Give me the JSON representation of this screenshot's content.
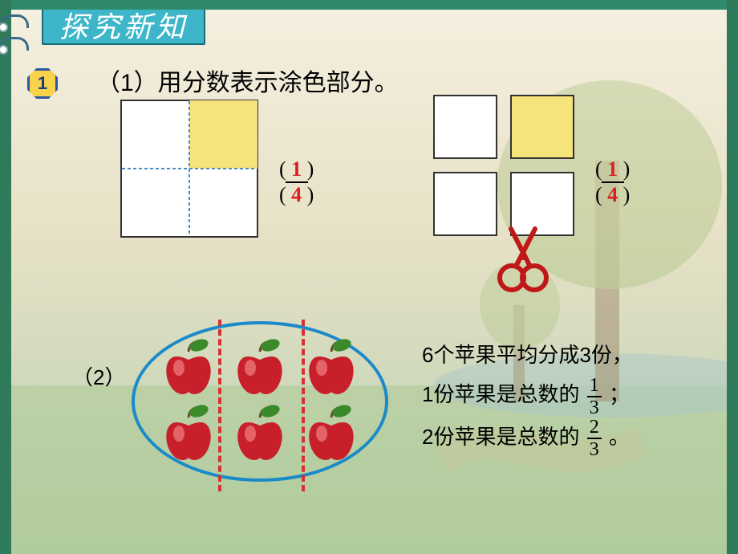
{
  "header": {
    "title": "探究新知",
    "bg_color": "#3eb6c9",
    "text_color": "#ffffff",
    "border_color": "#176b7a"
  },
  "badge": {
    "number": "1",
    "bg_color": "#f7d24a",
    "border_color": "#2a5aa0",
    "text_color": "#1a3a7a"
  },
  "frame": {
    "top_color": "#2e8a6a",
    "side_color": "#2e7a5a"
  },
  "question1": {
    "label": "（1）用分数表示涂色部分。",
    "diagA": {
      "size": 172,
      "border_color": "#333333",
      "fill_color": "#f5e47a",
      "dash_color": "#4a8ac0",
      "shaded_cell": 1
    },
    "fracA": {
      "numerator": "1",
      "denominator": "4",
      "color": "#d92020"
    },
    "diagB": {
      "cell_size": 80,
      "gap": 16,
      "border_color": "#333333",
      "fill_color": "#f5e47a",
      "shaded_cell": 1
    },
    "fracB": {
      "numerator": "1",
      "denominator": "4",
      "color": "#d92020"
    },
    "scissors": {
      "color": "#c01818",
      "size": 80
    }
  },
  "question2": {
    "label": "（2）",
    "oval": {
      "border_color": "#1a8ac8",
      "dash_color": "#d83030",
      "apple_count": 6,
      "columns": 3,
      "rows": 2,
      "apple_body_color": "#c8202a",
      "apple_highlight": "#f08080",
      "apple_leaf_color": "#3a8a2a",
      "apple_stem_color": "#6a4a2a"
    },
    "text_lines": {
      "line1_a": "6个苹果平均分成3份，",
      "line2_a": "1份苹果是总数的",
      "line2_frac_n": "1",
      "line2_frac_d": "3",
      "line2_b": "；",
      "line3_a": "2份苹果是总数的",
      "line3_frac_n": "2",
      "line3_frac_d": "3",
      "line3_b": "。"
    }
  }
}
